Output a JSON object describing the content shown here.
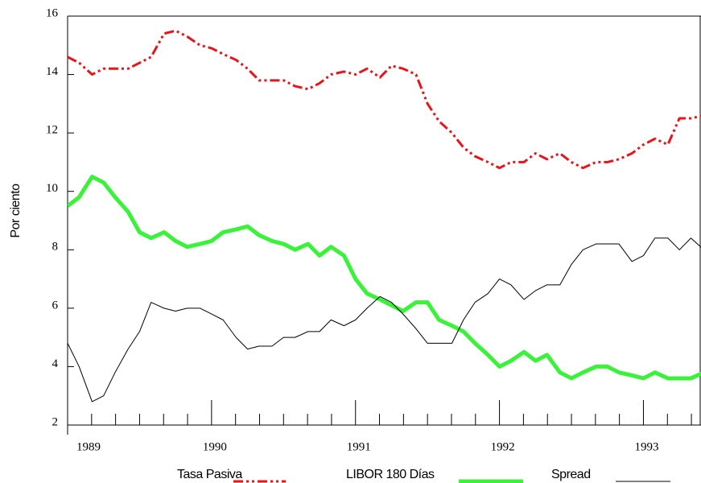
{
  "chart_data": {
    "type": "line",
    "y_label": "Por ciento",
    "x": [
      1989.0,
      1989.08,
      1989.17,
      1989.25,
      1989.33,
      1989.42,
      1989.5,
      1989.58,
      1989.67,
      1989.75,
      1989.83,
      1989.92,
      1990.0,
      1990.08,
      1990.17,
      1990.25,
      1990.33,
      1990.42,
      1990.5,
      1990.58,
      1990.67,
      1990.75,
      1990.83,
      1990.92,
      1991.0,
      1991.08,
      1991.17,
      1991.25,
      1991.33,
      1991.42,
      1991.5,
      1991.58,
      1991.67,
      1991.75,
      1991.83,
      1991.92,
      1992.0,
      1992.08,
      1992.17,
      1992.25,
      1992.33,
      1992.42,
      1992.5,
      1992.58,
      1992.67,
      1992.75,
      1992.83,
      1992.92,
      1993.0,
      1993.08,
      1993.17,
      1993.25,
      1993.33,
      1993.42
    ],
    "series": [
      {
        "name": "Tasa Pasiva",
        "color": "#e8141a",
        "style": "dashdot",
        "values": [
          14.6,
          14.4,
          14.0,
          14.2,
          14.2,
          14.2,
          14.4,
          14.6,
          15.4,
          15.5,
          15.3,
          15.0,
          14.9,
          14.7,
          14.5,
          14.2,
          13.8,
          13.8,
          13.8,
          13.6,
          13.5,
          13.7,
          14.0,
          14.1,
          14.0,
          14.2,
          13.9,
          14.3,
          14.2,
          14.0,
          13.0,
          12.4,
          12.0,
          11.5,
          11.2,
          11.0,
          10.8,
          11.0,
          11.0,
          11.3,
          11.1,
          11.3,
          11.0,
          10.8,
          11.0,
          11.0,
          11.1,
          11.3,
          11.6,
          11.8,
          11.6,
          12.5,
          12.5,
          12.6
        ]
      },
      {
        "name": "LIBOR 180 Días",
        "color": "#3af23a",
        "style": "thick",
        "values": [
          9.5,
          9.8,
          10.5,
          10.3,
          9.8,
          9.3,
          8.6,
          8.4,
          8.6,
          8.3,
          8.1,
          8.2,
          8.3,
          8.6,
          8.7,
          8.8,
          8.5,
          8.3,
          8.2,
          8.0,
          8.2,
          7.8,
          8.1,
          7.8,
          7.0,
          6.5,
          6.3,
          6.1,
          5.9,
          6.2,
          6.2,
          5.6,
          5.4,
          5.2,
          4.8,
          4.4,
          4.0,
          4.2,
          4.5,
          4.2,
          4.4,
          3.8,
          3.6,
          3.8,
          4.0,
          4.0,
          3.8,
          3.7,
          3.6,
          3.8,
          3.6,
          3.6,
          3.6,
          3.8
        ]
      },
      {
        "name": "Spread",
        "color": "#000000",
        "style": "thin",
        "values": [
          4.8,
          4.0,
          2.8,
          3.0,
          3.8,
          4.6,
          5.2,
          6.2,
          6.0,
          5.9,
          6.0,
          6.0,
          5.8,
          5.6,
          5.0,
          4.6,
          4.7,
          4.7,
          5.0,
          5.0,
          5.2,
          5.2,
          5.6,
          5.4,
          5.6,
          6.0,
          6.4,
          6.2,
          5.8,
          5.3,
          4.8,
          4.8,
          4.8,
          5.6,
          6.2,
          6.5,
          7.0,
          6.8,
          6.3,
          6.6,
          6.8,
          6.8,
          7.5,
          8.0,
          8.2,
          8.2,
          8.2,
          7.6,
          7.8,
          8.4,
          8.4,
          8.0,
          8.4,
          8.0
        ]
      }
    ],
    "xlim": [
      1989,
      1993.4
    ],
    "xticks": [
      1989,
      1990,
      1991,
      1992,
      1993
    ],
    "ylim": [
      2,
      16
    ],
    "yticks": [
      2,
      4,
      6,
      8,
      10,
      12,
      14,
      16
    ],
    "grid": false,
    "legend": "bottom"
  }
}
